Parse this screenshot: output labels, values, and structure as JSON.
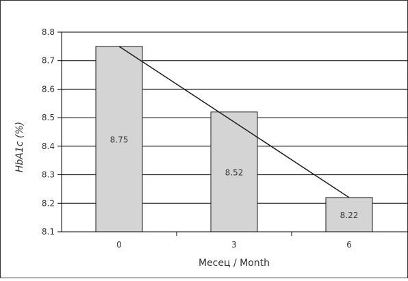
{
  "chart_data": {
    "type": "bar",
    "categories": [
      "0",
      "3",
      "6"
    ],
    "values": [
      8.75,
      8.52,
      8.22
    ],
    "data_labels": [
      "8.75",
      "8.52",
      "8.22"
    ],
    "trendline": {
      "type": "linear",
      "values": [
        8.75,
        8.485,
        8.22
      ]
    },
    "xlabel": "Месец / Month",
    "ylabel": "HbA1c (%)",
    "ylim": [
      8.1,
      8.8
    ],
    "yticks": [
      "8.1",
      "8.2",
      "8.3",
      "8.4",
      "8.5",
      "8.6",
      "8.7",
      "8.8"
    ],
    "grid": true,
    "legend": "none",
    "colors": {
      "bar_fill": "#d4d4d4",
      "bar_stroke": "#1a1a1a",
      "trend": "#1a1a1a",
      "grid": "#000000"
    }
  }
}
